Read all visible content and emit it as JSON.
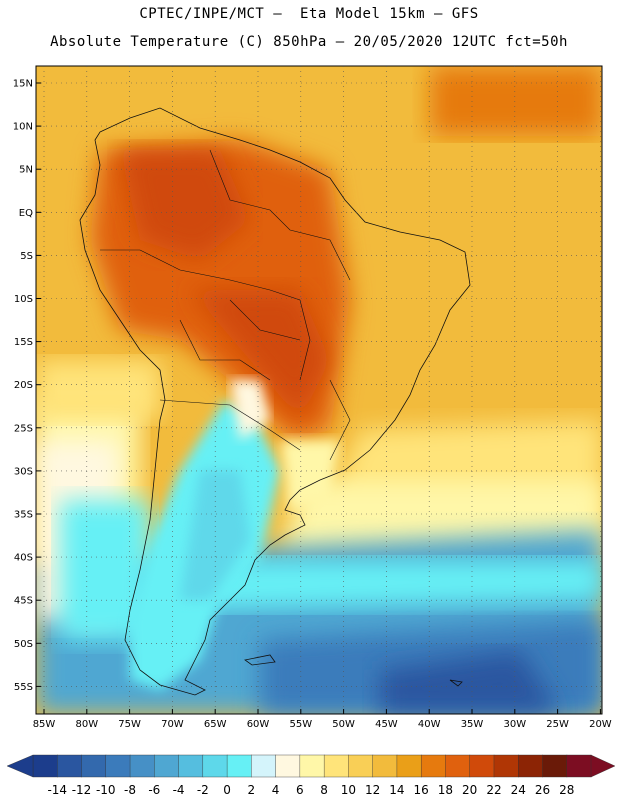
{
  "header": {
    "line1": "CPTEC/INPE/MCT –  Eta Model 15km – GFS",
    "line2": "Absolute Temperature (C) 850hPa – 20/05/2020 12UTC fct=50h"
  },
  "map": {
    "lat_labels": [
      "15N",
      "10N",
      "5N",
      "EQ",
      "5S",
      "10S",
      "15S",
      "20S",
      "25S",
      "30S",
      "35S",
      "40S",
      "45S",
      "50S",
      "55S"
    ],
    "lon_labels": [
      "85W",
      "80W",
      "75W",
      "70W",
      "65W",
      "60W",
      "55W",
      "50W",
      "45W",
      "40W",
      "35W",
      "30W",
      "25W",
      "20W"
    ],
    "grid": "dotted"
  },
  "colorbar": {
    "labels": [
      "-14",
      "-12",
      "-10",
      "-8",
      "-6",
      "-4",
      "-2",
      "0",
      "2",
      "4",
      "6",
      "8",
      "10",
      "12",
      "14",
      "16",
      "18",
      "20",
      "22",
      "24",
      "26",
      "28"
    ],
    "colors": [
      "#1c3d8c",
      "#2a56a0",
      "#3369ad",
      "#3b7bbb",
      "#4690c6",
      "#4fa7d2",
      "#55bedf",
      "#5ed8ea",
      "#66f0f5",
      "#d4f4fb",
      "#fff8e0",
      "#fff7a8",
      "#ffe47a",
      "#f9cf56",
      "#f2bb3c",
      "#ea9f18",
      "#e67a0e",
      "#e0610e",
      "#d04a0a",
      "#b03605",
      "#8c2405",
      "#6a1a08",
      "#7c0d22"
    ],
    "min_arrow_color": "#1c3d8c",
    "max_arrow_color": "#7c0d22"
  }
}
